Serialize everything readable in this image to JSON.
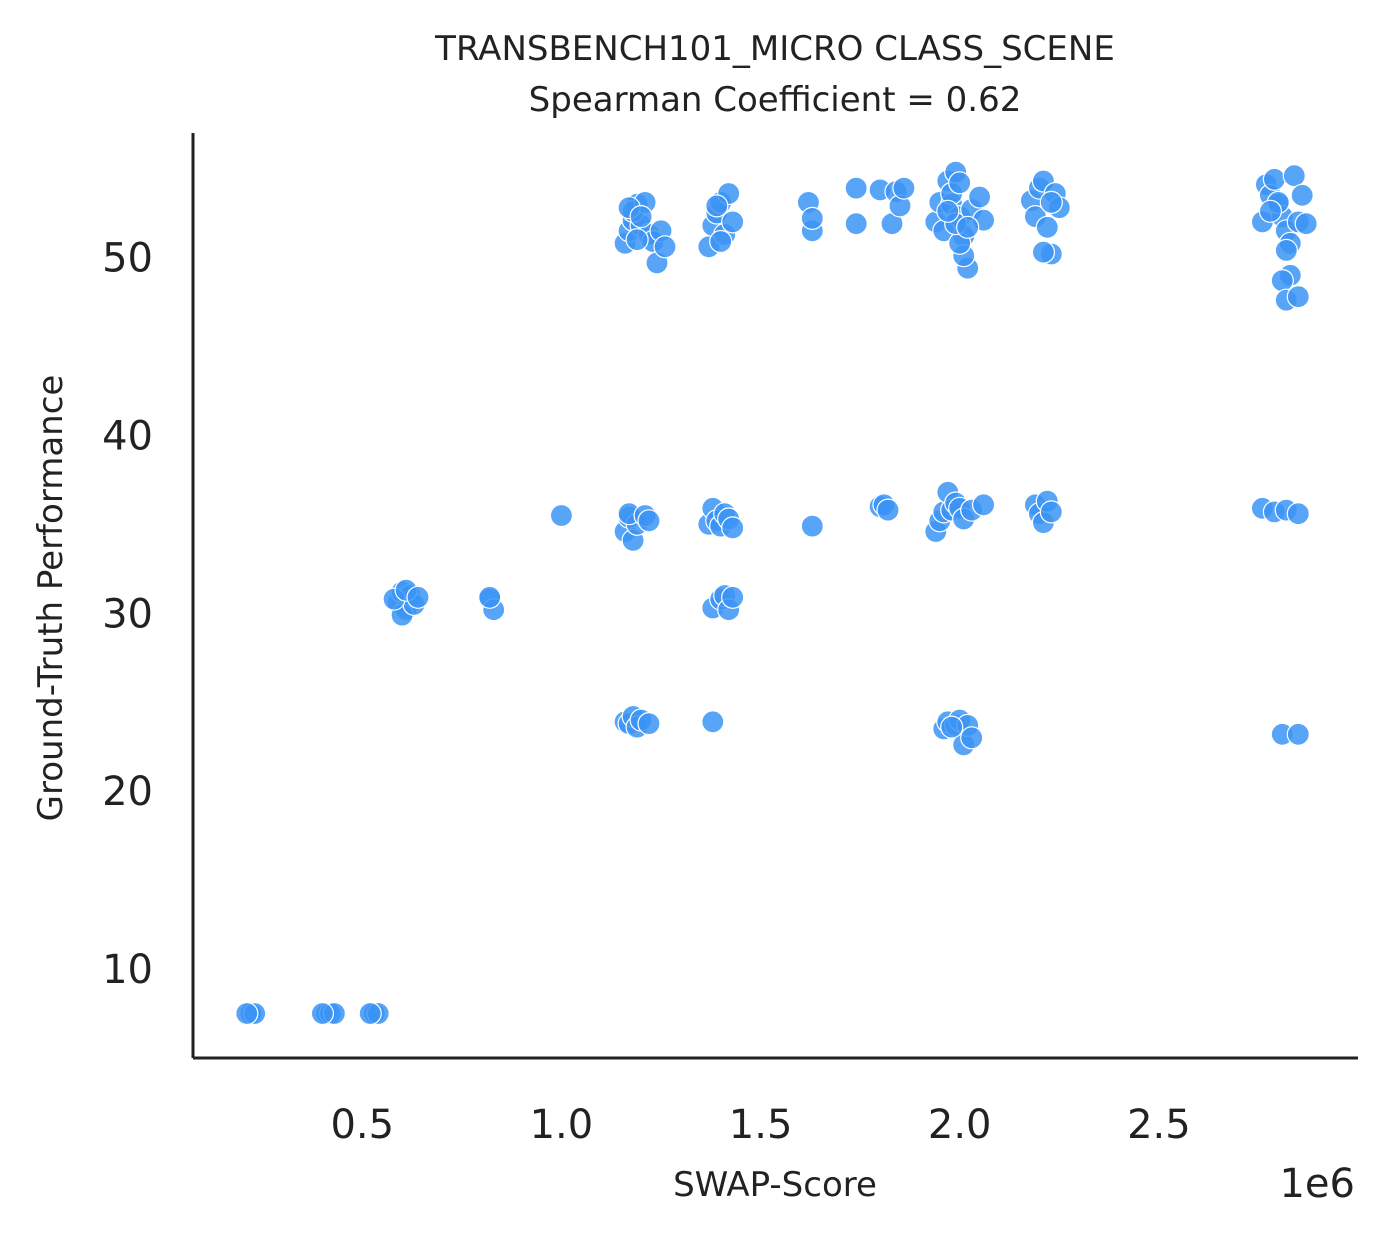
{
  "chart_data": {
    "type": "scatter",
    "title": "TRANSBENCH101_MICRO CLASS_SCENE",
    "subtitle": "Spearman Coefficient = 0.62",
    "xlabel": "SWAP-Score",
    "ylabel": "Ground-Truth Performance",
    "x_offset_label": "1e6",
    "xlim": [
      0.075,
      3.0
    ],
    "ylim": [
      5,
      57
    ],
    "xticks": [
      0.5,
      1.0,
      1.5,
      2.0,
      2.5
    ],
    "xtick_labels": [
      "0.5",
      "1.0",
      "1.5",
      "2.0",
      "2.5"
    ],
    "yticks": [
      10,
      20,
      30,
      40,
      50
    ],
    "ytick_labels": [
      "10",
      "20",
      "30",
      "40",
      "50"
    ],
    "grid": false,
    "marker_color": "#3b94f5",
    "marker_edge_color": "#ffffff",
    "points": [
      [
        0.22,
        7.5
      ],
      [
        0.23,
        7.5
      ],
      [
        0.21,
        7.5
      ],
      [
        0.41,
        7.5
      ],
      [
        0.42,
        7.5
      ],
      [
        0.43,
        7.5
      ],
      [
        0.4,
        7.5
      ],
      [
        0.53,
        7.5
      ],
      [
        0.54,
        7.5
      ],
      [
        0.52,
        7.5
      ],
      [
        0.59,
        30.6
      ],
      [
        0.6,
        31.2
      ],
      [
        0.61,
        30.2
      ],
      [
        0.62,
        31.0
      ],
      [
        0.6,
        29.9
      ],
      [
        0.63,
        30.5
      ],
      [
        0.58,
        30.8
      ],
      [
        0.61,
        31.3
      ],
      [
        0.64,
        30.9
      ],
      [
        0.82,
        30.8
      ],
      [
        0.83,
        30.2
      ],
      [
        0.82,
        30.9
      ],
      [
        1.0,
        35.5
      ],
      [
        1.16,
        34.6
      ],
      [
        1.17,
        35.4
      ],
      [
        1.18,
        34.1
      ],
      [
        1.19,
        35.0
      ],
      [
        1.17,
        35.6
      ],
      [
        1.21,
        35.5
      ],
      [
        1.22,
        35.2
      ],
      [
        1.16,
        23.9
      ],
      [
        1.17,
        23.8
      ],
      [
        1.18,
        24.2
      ],
      [
        1.19,
        23.6
      ],
      [
        1.2,
        24.0
      ],
      [
        1.22,
        23.8
      ],
      [
        1.37,
        35.0
      ],
      [
        1.38,
        35.9
      ],
      [
        1.39,
        35.2
      ],
      [
        1.4,
        34.9
      ],
      [
        1.41,
        35.6
      ],
      [
        1.42,
        35.3
      ],
      [
        1.43,
        34.8
      ],
      [
        1.38,
        30.3
      ],
      [
        1.4,
        30.8
      ],
      [
        1.41,
        31.0
      ],
      [
        1.42,
        30.2
      ],
      [
        1.43,
        30.9
      ],
      [
        1.38,
        23.9
      ],
      [
        1.63,
        34.9
      ],
      [
        1.8,
        36.0
      ],
      [
        1.81,
        36.1
      ],
      [
        1.82,
        35.8
      ],
      [
        1.94,
        34.6
      ],
      [
        1.95,
        35.2
      ],
      [
        1.96,
        35.7
      ],
      [
        1.97,
        36.8
      ],
      [
        1.98,
        35.8
      ],
      [
        1.99,
        36.2
      ],
      [
        2.0,
        35.9
      ],
      [
        2.01,
        35.3
      ],
      [
        2.03,
        35.8
      ],
      [
        2.06,
        36.1
      ],
      [
        1.96,
        23.5
      ],
      [
        1.97,
        23.9
      ],
      [
        1.99,
        23.7
      ],
      [
        2.0,
        24.0
      ],
      [
        2.01,
        22.6
      ],
      [
        2.02,
        23.7
      ],
      [
        2.03,
        23.0
      ],
      [
        1.98,
        23.6
      ],
      [
        2.19,
        36.1
      ],
      [
        2.2,
        35.6
      ],
      [
        2.21,
        35.1
      ],
      [
        2.22,
        36.3
      ],
      [
        2.23,
        35.7
      ],
      [
        2.76,
        35.9
      ],
      [
        2.79,
        35.7
      ],
      [
        2.82,
        35.8
      ],
      [
        2.85,
        35.6
      ],
      [
        2.81,
        23.2
      ],
      [
        2.85,
        23.2
      ],
      [
        1.16,
        50.8
      ],
      [
        1.17,
        51.5
      ],
      [
        1.18,
        52.1
      ],
      [
        1.19,
        53.0
      ],
      [
        1.2,
        51.8
      ],
      [
        1.18,
        52.6
      ],
      [
        1.21,
        53.1
      ],
      [
        1.22,
        51.3
      ],
      [
        1.23,
        50.9
      ],
      [
        1.24,
        49.7
      ],
      [
        1.25,
        51.5
      ],
      [
        1.26,
        50.6
      ],
      [
        1.17,
        52.8
      ],
      [
        1.19,
        51.0
      ],
      [
        1.2,
        52.3
      ],
      [
        1.37,
        50.6
      ],
      [
        1.38,
        51.8
      ],
      [
        1.39,
        52.5
      ],
      [
        1.4,
        53.1
      ],
      [
        1.41,
        51.3
      ],
      [
        1.42,
        53.6
      ],
      [
        1.4,
        50.9
      ],
      [
        1.43,
        52.0
      ],
      [
        1.39,
        52.9
      ],
      [
        1.62,
        53.1
      ],
      [
        1.63,
        51.5
      ],
      [
        1.63,
        52.2
      ],
      [
        1.74,
        53.9
      ],
      [
        1.74,
        51.9
      ],
      [
        1.8,
        53.8
      ],
      [
        1.83,
        51.9
      ],
      [
        1.84,
        53.7
      ],
      [
        1.85,
        52.9
      ],
      [
        1.86,
        53.9
      ],
      [
        1.94,
        52.0
      ],
      [
        1.95,
        53.1
      ],
      [
        1.96,
        51.5
      ],
      [
        1.97,
        54.3
      ],
      [
        1.98,
        53.0
      ],
      [
        1.99,
        54.8
      ],
      [
        2.0,
        52.3
      ],
      [
        2.01,
        51.2
      ],
      [
        2.02,
        49.4
      ],
      [
        2.01,
        50.1
      ],
      [
        2.0,
        50.8
      ],
      [
        1.99,
        51.9
      ],
      [
        1.98,
        53.6
      ],
      [
        2.0,
        54.2
      ],
      [
        2.03,
        52.7
      ],
      [
        2.05,
        53.4
      ],
      [
        2.06,
        52.1
      ],
      [
        1.97,
        52.6
      ],
      [
        2.02,
        51.7
      ],
      [
        2.18,
        53.2
      ],
      [
        2.19,
        52.3
      ],
      [
        2.2,
        53.9
      ],
      [
        2.21,
        54.3
      ],
      [
        2.22,
        51.7
      ],
      [
        2.23,
        50.2
      ],
      [
        2.24,
        53.6
      ],
      [
        2.25,
        52.8
      ],
      [
        2.21,
        50.3
      ],
      [
        2.23,
        53.1
      ],
      [
        2.76,
        52.0
      ],
      [
        2.77,
        54.1
      ],
      [
        2.78,
        53.5
      ],
      [
        2.79,
        54.4
      ],
      [
        2.8,
        53.0
      ],
      [
        2.81,
        52.3
      ],
      [
        2.82,
        51.5
      ],
      [
        2.83,
        50.8
      ],
      [
        2.84,
        54.6
      ],
      [
        2.85,
        52.0
      ],
      [
        2.82,
        50.4
      ],
      [
        2.83,
        49.0
      ],
      [
        2.81,
        48.7
      ],
      [
        2.82,
        47.6
      ],
      [
        2.85,
        47.8
      ],
      [
        2.8,
        53.1
      ],
      [
        2.78,
        52.6
      ],
      [
        2.86,
        53.5
      ],
      [
        2.87,
        51.9
      ]
    ]
  }
}
